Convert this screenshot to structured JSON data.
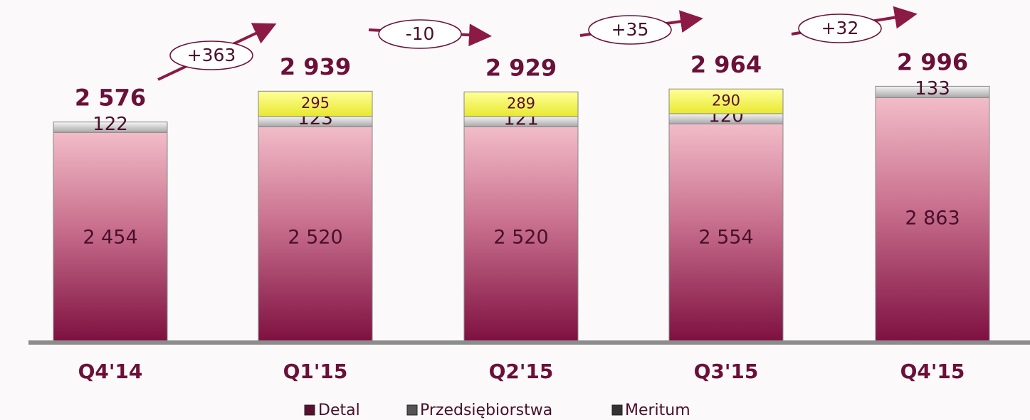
{
  "chart_data": {
    "type": "bar",
    "stacked": true,
    "categories": [
      "Q4'14",
      "Q1'15",
      "Q2'15",
      "Q3'15",
      "Q4'15"
    ],
    "series": [
      {
        "name": "Detal",
        "color": "#a83a62",
        "values": [
          2454,
          2520,
          2520,
          2554,
          2863
        ],
        "value_labels": [
          "2 454",
          "2 520",
          "2 520",
          "2 554",
          "2 863"
        ]
      },
      {
        "name": "Przedsiębiorstwa",
        "color": "#d9d9d9",
        "values": [
          122,
          123,
          121,
          120,
          133
        ]
      },
      {
        "name": "Meritum",
        "color": "#ffff66",
        "values": [
          null,
          295,
          289,
          290,
          null
        ]
      }
    ],
    "totals": [
      2576,
      2939,
      2929,
      2964,
      2996
    ],
    "total_labels": [
      "2 576",
      "2 939",
      "2 929",
      "2 964",
      "2 996"
    ],
    "changes": [
      "+363",
      "-10",
      "+35",
      "+32"
    ],
    "ylim": [
      0,
      3300
    ]
  }
}
